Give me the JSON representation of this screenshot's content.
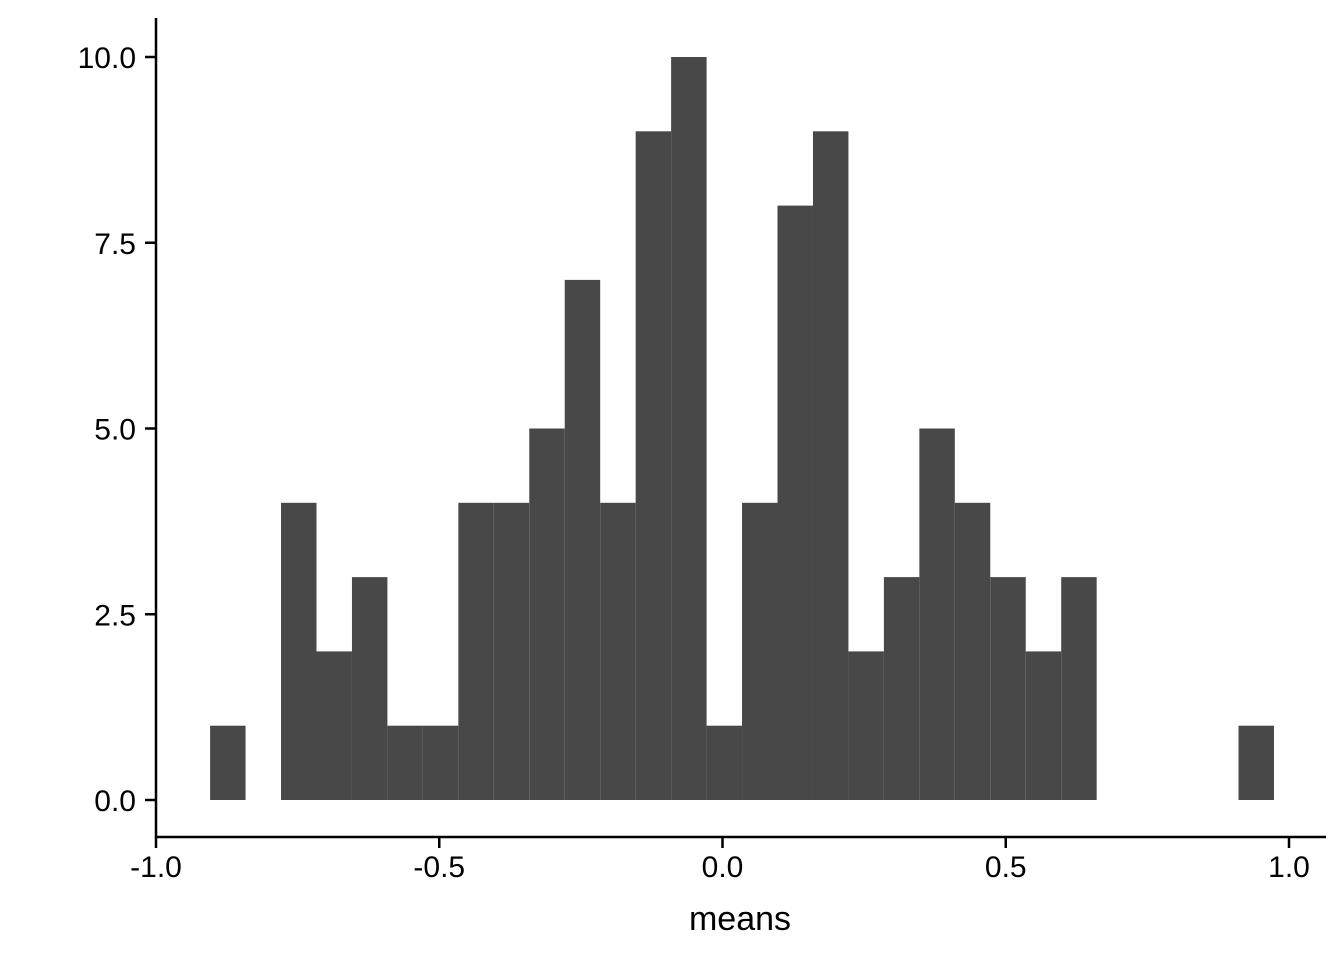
{
  "chart_data": {
    "type": "bar",
    "subtype": "histogram",
    "title": "",
    "xlabel": "means",
    "ylabel": "",
    "xlim": [
      -1.0,
      1.0
    ],
    "ylim": [
      0,
      10
    ],
    "x_ticks": [
      -1.0,
      -0.5,
      0.0,
      0.5,
      1.0
    ],
    "x_tick_labels": [
      "-1.0",
      "-0.5",
      "0.0",
      "0.5",
      "1.0"
    ],
    "y_ticks": [
      0,
      2.5,
      5,
      7.5,
      10
    ],
    "y_tick_labels": [
      "0.0",
      "2.5",
      "5.0",
      "7.5",
      "10.0"
    ],
    "bin_width": 0.0626,
    "bins": [
      {
        "x0": -0.9045,
        "x1": -0.8419,
        "count": 1
      },
      {
        "x0": -0.7793,
        "x1": -0.7167,
        "count": 4
      },
      {
        "x0": -0.7167,
        "x1": -0.6541,
        "count": 2
      },
      {
        "x0": -0.6541,
        "x1": -0.5915,
        "count": 3
      },
      {
        "x0": -0.5915,
        "x1": -0.5289,
        "count": 1
      },
      {
        "x0": -0.5289,
        "x1": -0.4663,
        "count": 1
      },
      {
        "x0": -0.4663,
        "x1": -0.4037,
        "count": 4
      },
      {
        "x0": -0.4037,
        "x1": -0.3411,
        "count": 4
      },
      {
        "x0": -0.3411,
        "x1": -0.2785,
        "count": 5
      },
      {
        "x0": -0.2785,
        "x1": -0.2159,
        "count": 7
      },
      {
        "x0": -0.2159,
        "x1": -0.1533,
        "count": 4
      },
      {
        "x0": -0.1533,
        "x1": -0.0907,
        "count": 9
      },
      {
        "x0": -0.0907,
        "x1": -0.0281,
        "count": 10
      },
      {
        "x0": -0.0281,
        "x1": 0.0345,
        "count": 1
      },
      {
        "x0": 0.0345,
        "x1": 0.0971,
        "count": 4
      },
      {
        "x0": 0.0971,
        "x1": 0.1597,
        "count": 8
      },
      {
        "x0": 0.1597,
        "x1": 0.2223,
        "count": 9
      },
      {
        "x0": 0.2223,
        "x1": 0.2849,
        "count": 2
      },
      {
        "x0": 0.2849,
        "x1": 0.3475,
        "count": 3
      },
      {
        "x0": 0.3475,
        "x1": 0.4101,
        "count": 5
      },
      {
        "x0": 0.4101,
        "x1": 0.4727,
        "count": 4
      },
      {
        "x0": 0.4727,
        "x1": 0.5353,
        "count": 3
      },
      {
        "x0": 0.5353,
        "x1": 0.5979,
        "count": 2
      },
      {
        "x0": 0.5979,
        "x1": 0.6605,
        "count": 3
      },
      {
        "x0": 0.9109,
        "x1": 0.9735,
        "count": 1
      }
    ],
    "bar_color": "#484848",
    "grid": false,
    "legend": "none"
  }
}
